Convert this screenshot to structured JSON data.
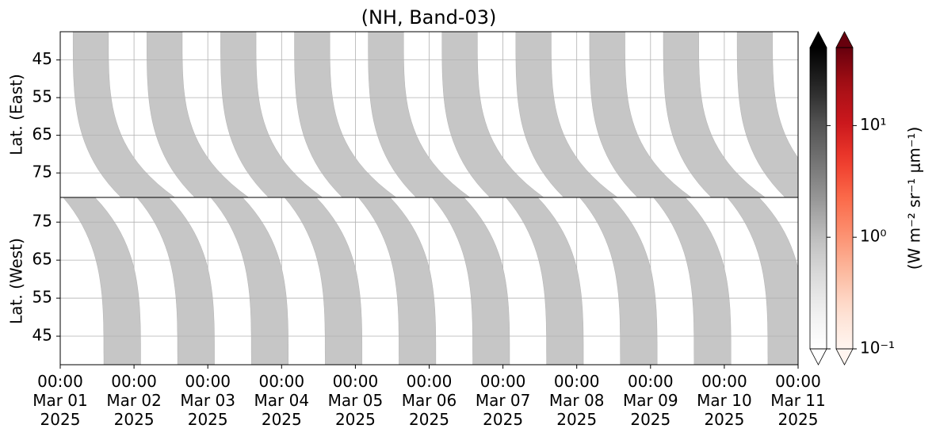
{
  "chart_data": {
    "type": "swath-heatmap",
    "title": "(NH, Band-03)",
    "xlim": [
      "2025-03-01T00:00",
      "2025-03-11T00:00"
    ],
    "xticks": [
      {
        "value": "2025-03-01T00:00",
        "label": "00:00\nMar 01\n2025"
      },
      {
        "value": "2025-03-02T00:00",
        "label": "00:00\nMar 02\n2025"
      },
      {
        "value": "2025-03-03T00:00",
        "label": "00:00\nMar 03\n2025"
      },
      {
        "value": "2025-03-04T00:00",
        "label": "00:00\nMar 04\n2025"
      },
      {
        "value": "2025-03-05T00:00",
        "label": "00:00\nMar 05\n2025"
      },
      {
        "value": "2025-03-06T00:00",
        "label": "00:00\nMar 06\n2025"
      },
      {
        "value": "2025-03-07T00:00",
        "label": "00:00\nMar 07\n2025"
      },
      {
        "value": "2025-03-08T00:00",
        "label": "00:00\nMar 08\n2025"
      },
      {
        "value": "2025-03-09T00:00",
        "label": "00:00\nMar 09\n2025"
      },
      {
        "value": "2025-03-10T00:00",
        "label": "00:00\nMar 10\n2025"
      },
      {
        "value": "2025-03-11T00:00",
        "label": "00:00\nMar 11\n2025"
      }
    ],
    "grid": true,
    "panels": [
      {
        "ylabel": "Lat. (East)",
        "ylim": [
          81.5,
          37.5
        ],
        "yticks": [
          45,
          55,
          65,
          75
        ],
        "direction": "east",
        "swaths": {
          "start": [
            "2025-03-01T04:10",
            "2025-03-02T04:10",
            "2025-03-03T04:10",
            "2025-03-04T04:10",
            "2025-03-05T04:10",
            "2025-03-06T04:10",
            "2025-03-07T04:10",
            "2025-03-08T04:10",
            "2025-03-09T04:10",
            "2025-03-10T04:10"
          ],
          "values": [
            0.8,
            0.8,
            0.8,
            0.8,
            0.8,
            0.8,
            0.8,
            0.8,
            0.8,
            0.8
          ]
        }
      },
      {
        "ylabel": "Lat. (West)",
        "ylim": [
          37.5,
          81.5
        ],
        "yticks": [
          45,
          55,
          65,
          75
        ],
        "direction": "west",
        "swaths": {
          "start": [
            "2025-03-01T14:10",
            "2025-03-02T14:10",
            "2025-03-03T14:10",
            "2025-03-04T14:10",
            "2025-03-05T14:10",
            "2025-03-06T14:10",
            "2025-03-07T14:10",
            "2025-03-08T14:10",
            "2025-03-09T14:10",
            "2025-03-10T14:10"
          ],
          "values": [
            0.8,
            0.8,
            0.8,
            0.8,
            0.8,
            0.8,
            0.8,
            0.8,
            0.8,
            0.8
          ]
        }
      }
    ],
    "colorbars": [
      {
        "cmap": "Greys",
        "clim": [
          0.1,
          50
        ],
        "log": true,
        "extend": "both"
      },
      {
        "cmap": "Reds",
        "clim": [
          0.1,
          50
        ],
        "log": true,
        "extend": "both",
        "ticks": [
          {
            "value": 0.1,
            "label": "10⁻¹"
          },
          {
            "value": 1,
            "label": "10⁰"
          },
          {
            "value": 10,
            "label": "10¹"
          }
        ],
        "label": "(W m⁻² sr⁻¹ μm⁻¹)"
      }
    ]
  }
}
